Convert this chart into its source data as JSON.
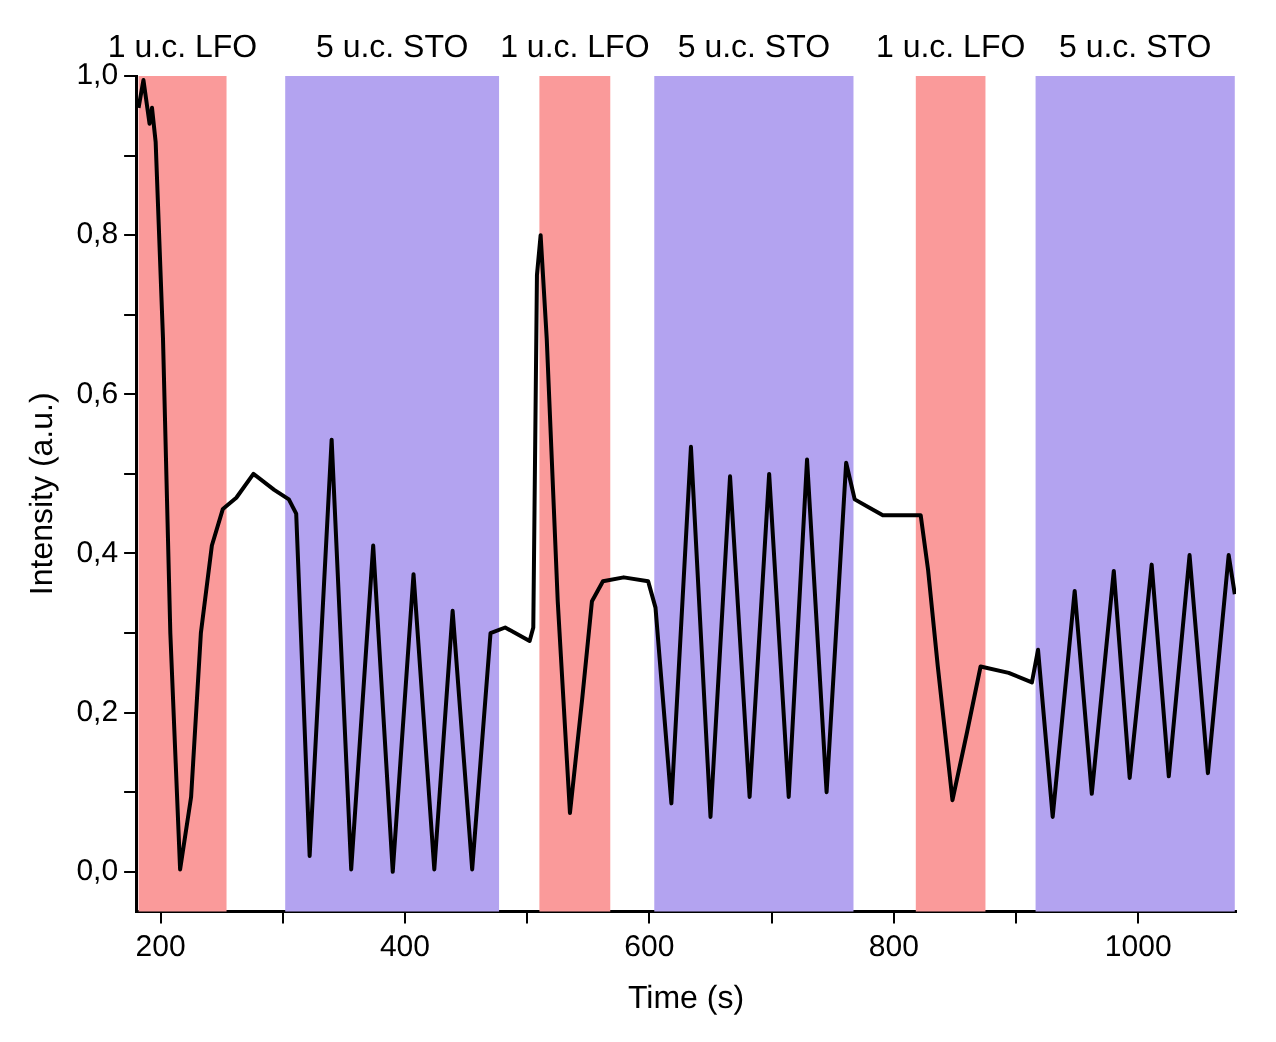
{
  "chart_data": {
    "type": "line",
    "xlabel": "Time (s)",
    "ylabel": "Intensity (a.u.)",
    "xlim": [
      180,
      1080
    ],
    "ylim": [
      -0.05,
      1.0
    ],
    "xticks": [
      200,
      {
        "value": 300,
        "label": null
      },
      400,
      {
        "value": 500,
        "label": null
      },
      600,
      {
        "value": 700,
        "label": null
      },
      800,
      {
        "value": 900,
        "label": null
      },
      1000
    ],
    "yticks": [
      {
        "value": 0,
        "label": "0,0"
      },
      {
        "value": 0.1,
        "label": null
      },
      {
        "value": 0.2,
        "label": "0,2"
      },
      {
        "value": 0.3,
        "label": null
      },
      {
        "value": 0.4,
        "label": "0,4"
      },
      {
        "value": 0.5,
        "label": null
      },
      {
        "value": 0.6,
        "label": "0,6"
      },
      {
        "value": 0.7,
        "label": null
      },
      {
        "value": 0.8,
        "label": "0,8"
      },
      {
        "value": 0.9,
        "label": null
      },
      {
        "value": 1.0,
        "label": "1,0"
      }
    ],
    "grid": false,
    "legend": false,
    "marker": "none",
    "line_style": "solid",
    "bands": [
      {
        "axis": "x",
        "from": 182,
        "to": 254,
        "label": "1 u.c. LFO",
        "color": "#fa9a9a"
      },
      {
        "axis": "x",
        "from": 302,
        "to": 477,
        "label": "5 u.c. STO",
        "color": "#b3a3f0"
      },
      {
        "axis": "x",
        "from": 510,
        "to": 568,
        "label": "1 u.c. LFO",
        "color": "#fa9a9a"
      },
      {
        "axis": "x",
        "from": 604,
        "to": 767,
        "label": "5 u.c. STO",
        "color": "#b3a3f0"
      },
      {
        "axis": "x",
        "from": 818,
        "to": 875,
        "label": "1 u.c. LFO",
        "color": "#fa9a9a"
      },
      {
        "axis": "x",
        "from": 916,
        "to": 1079,
        "label": "5 u.c. STO",
        "color": "#b3a3f0"
      }
    ],
    "series": [
      {
        "color": "#000000",
        "x": [
          182,
          186,
          191,
          193,
          196,
          202,
          208,
          216,
          225,
          233,
          242,
          251,
          262,
          276,
          293,
          305,
          311,
          322,
          340,
          356,
          374,
          390,
          407,
          424,
          439,
          455,
          470,
          482,
          502,
          505,
          508,
          511,
          516,
          525,
          535,
          545,
          553,
          562,
          579,
          599,
          605,
          618,
          634,
          650,
          666,
          682,
          698,
          714,
          729,
          745,
          761,
          768,
          791,
          822,
          828,
          836,
          848,
          860,
          871,
          894,
          913,
          918,
          930,
          948,
          962,
          980,
          993,
          1011,
          1025,
          1042,
          1057,
          1074,
          1079
        ],
        "values": [
          0.96,
          0.995,
          0.94,
          0.96,
          0.917,
          0.67,
          0.3,
          0.003,
          0.094,
          0.3,
          0.41,
          0.456,
          0.47,
          0.5,
          0.48,
          0.468,
          0.45,
          0.02,
          0.543,
          0.003,
          0.41,
          0,
          0.374,
          0.003,
          0.328,
          0.003,
          0.3,
          0.307,
          0.29,
          0.307,
          0.75,
          0.8,
          0.67,
          0.34,
          0.074,
          0.217,
          0.34,
          0.365,
          0.37,
          0.365,
          0.332,
          0.086,
          0.534,
          0.069,
          0.497,
          0.094,
          0.5,
          0.094,
          0.518,
          0.1,
          0.514,
          0.468,
          0.448,
          0.448,
          0.38,
          0.258,
          0.09,
          0.176,
          0.258,
          0.25,
          0.238,
          0.279,
          0.069,
          0.353,
          0.098,
          0.378,
          0.118,
          0.386,
          0.12,
          0.398,
          0.124,
          0.398,
          0.349
        ]
      }
    ]
  }
}
